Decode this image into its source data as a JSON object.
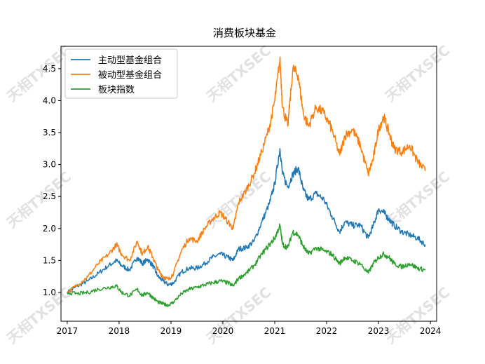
{
  "chart_data": {
    "type": "line",
    "title": "消费板块基金",
    "xlabel": "",
    "ylabel": "",
    "xlim": [
      2016.88,
      2024.12
    ],
    "ylim": [
      0.55,
      4.85
    ],
    "xticks": [
      2017,
      2018,
      2019,
      2020,
      2021,
      2022,
      2023,
      2024
    ],
    "xtick_labels": [
      "2017",
      "2018",
      "2019",
      "2020",
      "2021",
      "2022",
      "2023",
      "2024"
    ],
    "yticks": [
      1.0,
      1.5,
      2.0,
      2.5,
      3.0,
      3.5,
      4.0,
      4.5
    ],
    "ytick_labels": [
      "1.0",
      "1.5",
      "2.0",
      "2.5",
      "3.0",
      "3.5",
      "4.0",
      "4.5"
    ],
    "legend_position": "upper-left",
    "grid": false,
    "watermark": "天相TXSEC",
    "series": [
      {
        "name": "主动型基金组合",
        "color": "#1f77b4",
        "x": [
          2017.0,
          2017.2,
          2017.4,
          2017.6,
          2017.8,
          2017.95,
          2018.05,
          2018.2,
          2018.35,
          2018.45,
          2018.55,
          2018.65,
          2018.75,
          2018.85,
          2018.95,
          2019.05,
          2019.2,
          2019.35,
          2019.5,
          2019.65,
          2019.8,
          2019.95,
          2020.1,
          2020.2,
          2020.3,
          2020.45,
          2020.6,
          2020.75,
          2020.9,
          2021.0,
          2021.1,
          2021.15,
          2021.25,
          2021.35,
          2021.45,
          2021.55,
          2021.65,
          2021.8,
          2021.95,
          2022.1,
          2022.25,
          2022.35,
          2022.5,
          2022.65,
          2022.8,
          2022.9,
          2023.0,
          2023.1,
          2023.2,
          2023.3,
          2023.45,
          2023.6,
          2023.75,
          2023.9
        ],
        "y": [
          1.0,
          1.1,
          1.18,
          1.3,
          1.42,
          1.5,
          1.42,
          1.35,
          1.55,
          1.45,
          1.52,
          1.42,
          1.25,
          1.18,
          1.12,
          1.15,
          1.32,
          1.38,
          1.38,
          1.45,
          1.55,
          1.6,
          1.55,
          1.5,
          1.68,
          1.7,
          1.8,
          2.1,
          2.4,
          2.7,
          3.25,
          2.85,
          2.65,
          2.85,
          2.95,
          2.6,
          2.45,
          2.55,
          2.45,
          2.2,
          1.95,
          2.1,
          2.05,
          2.05,
          1.85,
          2.05,
          2.3,
          2.25,
          2.15,
          2.05,
          1.95,
          1.9,
          1.85,
          1.75
        ]
      },
      {
        "name": "被动型基金组合",
        "color": "#ff7f0e",
        "x": [
          2017.0,
          2017.2,
          2017.4,
          2017.6,
          2017.8,
          2017.95,
          2018.05,
          2018.2,
          2018.35,
          2018.45,
          2018.55,
          2018.65,
          2018.75,
          2018.85,
          2018.95,
          2019.05,
          2019.2,
          2019.35,
          2019.5,
          2019.65,
          2019.8,
          2019.95,
          2020.1,
          2020.2,
          2020.3,
          2020.45,
          2020.6,
          2020.75,
          2020.9,
          2021.0,
          2021.1,
          2021.15,
          2021.25,
          2021.35,
          2021.45,
          2021.55,
          2021.65,
          2021.8,
          2021.95,
          2022.1,
          2022.25,
          2022.35,
          2022.5,
          2022.65,
          2022.8,
          2022.9,
          2023.0,
          2023.1,
          2023.2,
          2023.3,
          2023.45,
          2023.6,
          2023.75,
          2023.9
        ],
        "y": [
          1.0,
          1.12,
          1.25,
          1.45,
          1.6,
          1.75,
          1.6,
          1.5,
          1.8,
          1.6,
          1.72,
          1.55,
          1.35,
          1.25,
          1.2,
          1.3,
          1.65,
          1.85,
          1.8,
          2.0,
          2.15,
          2.25,
          2.1,
          2.0,
          2.4,
          2.6,
          2.85,
          3.2,
          3.6,
          4.0,
          4.65,
          3.9,
          3.6,
          4.5,
          4.4,
          3.8,
          3.6,
          3.9,
          3.8,
          3.55,
          3.15,
          3.45,
          3.55,
          3.3,
          2.85,
          3.1,
          3.55,
          3.75,
          3.5,
          3.25,
          3.2,
          3.3,
          3.05,
          2.9
        ]
      },
      {
        "name": "板块指数",
        "color": "#2ca02c",
        "x": [
          2017.0,
          2017.2,
          2017.4,
          2017.6,
          2017.8,
          2017.95,
          2018.05,
          2018.2,
          2018.35,
          2018.45,
          2018.55,
          2018.65,
          2018.75,
          2018.85,
          2018.95,
          2019.05,
          2019.2,
          2019.35,
          2019.5,
          2019.65,
          2019.8,
          2019.95,
          2020.1,
          2020.2,
          2020.3,
          2020.45,
          2020.6,
          2020.75,
          2020.9,
          2021.0,
          2021.1,
          2021.15,
          2021.25,
          2021.35,
          2021.45,
          2021.55,
          2021.65,
          2021.8,
          2021.95,
          2022.1,
          2022.25,
          2022.35,
          2022.5,
          2022.65,
          2022.8,
          2022.9,
          2023.0,
          2023.1,
          2023.2,
          2023.3,
          2023.45,
          2023.6,
          2023.75,
          2023.9
        ],
        "y": [
          1.0,
          0.98,
          1.0,
          1.05,
          1.08,
          1.1,
          1.0,
          0.95,
          1.05,
          0.95,
          1.0,
          0.92,
          0.85,
          0.82,
          0.8,
          0.85,
          0.98,
          1.05,
          1.08,
          1.12,
          1.15,
          1.18,
          1.15,
          1.1,
          1.22,
          1.3,
          1.42,
          1.6,
          1.75,
          1.85,
          2.05,
          1.75,
          1.7,
          1.95,
          1.9,
          1.72,
          1.6,
          1.7,
          1.65,
          1.6,
          1.45,
          1.55,
          1.5,
          1.45,
          1.3,
          1.45,
          1.55,
          1.6,
          1.55,
          1.45,
          1.4,
          1.45,
          1.38,
          1.35
        ]
      }
    ]
  }
}
